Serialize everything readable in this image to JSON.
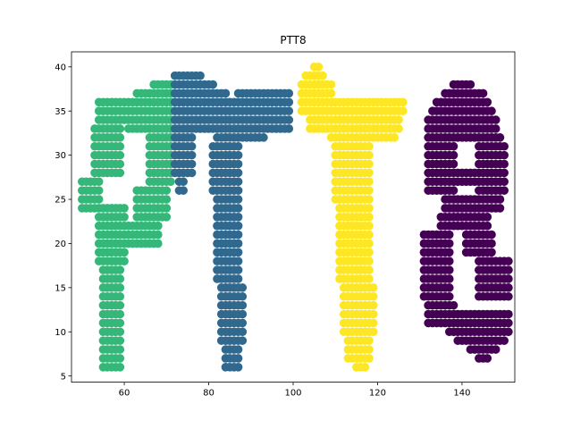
{
  "chart_data": {
    "type": "scatter",
    "title": "PTT8",
    "xlabel": "",
    "ylabel": "",
    "xlim": [
      47.5,
      152.5
    ],
    "ylim": [
      4.3,
      41.7
    ],
    "x_ticks": [
      60,
      80,
      100,
      120,
      140
    ],
    "y_ticks": [
      5,
      10,
      15,
      20,
      25,
      30,
      35,
      40
    ],
    "grid": false,
    "legend": "none",
    "colors": {
      "P": "#35b779",
      "T1": "#31688e",
      "T2": "#fde725",
      "8": "#440154"
    },
    "series": [
      {
        "name": "P",
        "color": "#35b779",
        "strokes": [
          {
            "x": [
              50,
              54
            ],
            "y": [
              24,
              27
            ]
          },
          {
            "x": [
              53,
              59
            ],
            "y": [
              28,
              33
            ]
          },
          {
            "x": [
              54,
              60
            ],
            "y": [
              18,
              24
            ]
          },
          {
            "x": [
              55,
              59
            ],
            "y": [
              6,
              17
            ]
          },
          {
            "x": [
              54,
              60
            ],
            "y": [
              34,
              36
            ]
          },
          {
            "x": [
              61,
              71
            ],
            "y": [
              33,
              36
            ]
          },
          {
            "x": [
              63,
              71
            ],
            "y": [
              37,
              37
            ]
          },
          {
            "x": [
              67,
              71
            ],
            "y": [
              38,
              38
            ]
          },
          {
            "x": [
              66,
              71
            ],
            "y": [
              27,
              32
            ]
          },
          {
            "x": [
              63,
              70
            ],
            "y": [
              23,
              26
            ]
          },
          {
            "x": [
              60,
              68
            ],
            "y": [
              20,
              22
            ]
          }
        ]
      },
      {
        "name": "T1",
        "color": "#31688e",
        "strokes": [
          {
            "x": [
              72,
              78
            ],
            "y": [
              39,
              39
            ]
          },
          {
            "x": [
              72,
              81
            ],
            "y": [
              38,
              38
            ]
          },
          {
            "x": [
              72,
              84
            ],
            "y": [
              37,
              37
            ]
          },
          {
            "x": [
              72,
              99
            ],
            "y": [
              33,
              36
            ]
          },
          {
            "x": [
              87,
              99
            ],
            "y": [
              37,
              37
            ]
          },
          {
            "x": [
              82,
              93
            ],
            "y": [
              32,
              32
            ]
          },
          {
            "x": [
              72,
              76
            ],
            "y": [
              28,
              32
            ]
          },
          {
            "x": [
              73,
              74
            ],
            "y": [
              26,
              27
            ]
          },
          {
            "x": [
              81,
              87
            ],
            "y": [
              26,
              31
            ]
          },
          {
            "x": [
              82,
              87
            ],
            "y": [
              16,
              25
            ]
          },
          {
            "x": [
              83,
              88
            ],
            "y": [
              9,
              15
            ]
          },
          {
            "x": [
              84,
              87
            ],
            "y": [
              6,
              8
            ]
          }
        ]
      },
      {
        "name": "T2",
        "color": "#fde725",
        "strokes": [
          {
            "x": [
              105,
              106
            ],
            "y": [
              40,
              40
            ]
          },
          {
            "x": [
              103,
              107
            ],
            "y": [
              39,
              39
            ]
          },
          {
            "x": [
              102,
              109
            ],
            "y": [
              37,
              38
            ]
          },
          {
            "x": [
              102,
              126
            ],
            "y": [
              35,
              36
            ]
          },
          {
            "x": [
              104,
              125
            ],
            "y": [
              33,
              34
            ]
          },
          {
            "x": [
              109,
              124
            ],
            "y": [
              32,
              32
            ]
          },
          {
            "x": [
              110,
              118
            ],
            "y": [
              25,
              31
            ]
          },
          {
            "x": [
              111,
              118
            ],
            "y": [
              16,
              24
            ]
          },
          {
            "x": [
              112,
              119
            ],
            "y": [
              10,
              15
            ]
          },
          {
            "x": [
              113,
              118
            ],
            "y": [
              7,
              9
            ]
          },
          {
            "x": [
              115,
              117
            ],
            "y": [
              6,
              6
            ]
          }
        ]
      },
      {
        "name": "8",
        "color": "#440154",
        "strokes": [
          {
            "x": [
              138,
              142
            ],
            "y": [
              38,
              38
            ]
          },
          {
            "x": [
              136,
              145
            ],
            "y": [
              37,
              37
            ]
          },
          {
            "x": [
              134,
              146
            ],
            "y": [
              36,
              36
            ]
          },
          {
            "x": [
              133,
              147
            ],
            "y": [
              35,
              35
            ]
          },
          {
            "x": [
              132,
              148
            ],
            "y": [
              33,
              34
            ]
          },
          {
            "x": [
              132,
              149
            ],
            "y": [
              32,
              32
            ]
          },
          {
            "x": [
              132,
              138
            ],
            "y": [
              26,
              31
            ]
          },
          {
            "x": [
              144,
              150
            ],
            "y": [
              26,
              31
            ]
          },
          {
            "x": [
              138,
              144
            ],
            "y": [
              27,
              28
            ]
          },
          {
            "x": [
              136,
              149
            ],
            "y": [
              24,
              25
            ]
          },
          {
            "x": [
              135,
              146
            ],
            "y": [
              22,
              23
            ]
          },
          {
            "x": [
              131,
              137
            ],
            "y": [
              14,
              21
            ]
          },
          {
            "x": [
              141,
              147
            ],
            "y": [
              19,
              21
            ]
          },
          {
            "x": [
              144,
              151
            ],
            "y": [
              14,
              18
            ]
          },
          {
            "x": [
              132,
              138
            ],
            "y": [
              11,
              13
            ]
          },
          {
            "x": [
              137,
              151
            ],
            "y": [
              10,
              12
            ]
          },
          {
            "x": [
              139,
              150
            ],
            "y": [
              9,
              9
            ]
          },
          {
            "x": [
              142,
              148
            ],
            "y": [
              8,
              8
            ]
          },
          {
            "x": [
              144,
              146
            ],
            "y": [
              7,
              7
            ]
          }
        ]
      }
    ]
  }
}
